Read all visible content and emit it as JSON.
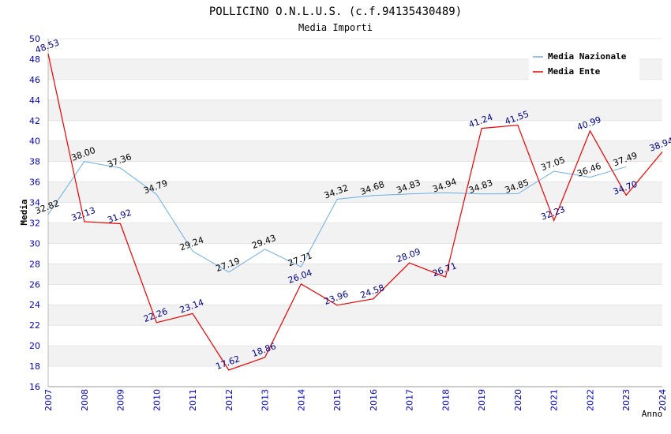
{
  "chart_data": {
    "type": "line",
    "title": "POLLICINO O.N.L.U.S. (c.f.94135430489)",
    "subtitle": "Media Importi",
    "xlabel": "Anno",
    "ylabel": "Media",
    "ylim": [
      16,
      50
    ],
    "ytick_step": 2,
    "grid": true,
    "legend_position": "top-right",
    "categories": [
      "2007",
      "2008",
      "2009",
      "2010",
      "2011",
      "2012",
      "2013",
      "2014",
      "2015",
      "2016",
      "2017",
      "2018",
      "2019",
      "2020",
      "2021",
      "2022",
      "2023",
      "2024"
    ],
    "series": [
      {
        "name": "Media Nazionale",
        "color": "#6aaee6",
        "label_color": "#000000",
        "values": [
          32.82,
          38.0,
          37.36,
          34.79,
          29.24,
          27.19,
          29.43,
          27.71,
          34.32,
          34.68,
          34.83,
          34.94,
          34.83,
          34.85,
          37.05,
          36.46,
          37.49,
          null
        ],
        "labels": [
          "32.82",
          "38.00",
          "37.36",
          "34.79",
          "29.24",
          "27.19",
          "29.43",
          "27.71",
          "34.32",
          "34.68",
          "34.83",
          "34.94",
          "34.83",
          "34.85",
          "37.05",
          "36.46",
          "37.49",
          ""
        ]
      },
      {
        "name": "Media Ente",
        "color": "#ee0000",
        "label_color": "#00008b",
        "values": [
          48.53,
          32.13,
          31.92,
          22.26,
          23.14,
          17.62,
          18.86,
          26.04,
          23.96,
          24.58,
          28.09,
          26.71,
          41.24,
          41.55,
          32.23,
          40.99,
          34.7,
          38.94
        ],
        "labels": [
          "48.53",
          "32.13",
          "31.92",
          "22.26",
          "23.14",
          "17.62",
          "18.86",
          "26.04",
          "23.96",
          "24.58",
          "28.09",
          "26.71",
          "41.24",
          "41.55",
          "32.23",
          "40.99",
          "34.70",
          "38.94"
        ]
      }
    ],
    "colors": {
      "axis_text": "#0000cc",
      "band": "#f2f2f2",
      "gridline": "#d8d8d8",
      "title": "#000000",
      "subtitle": "#333333"
    }
  }
}
